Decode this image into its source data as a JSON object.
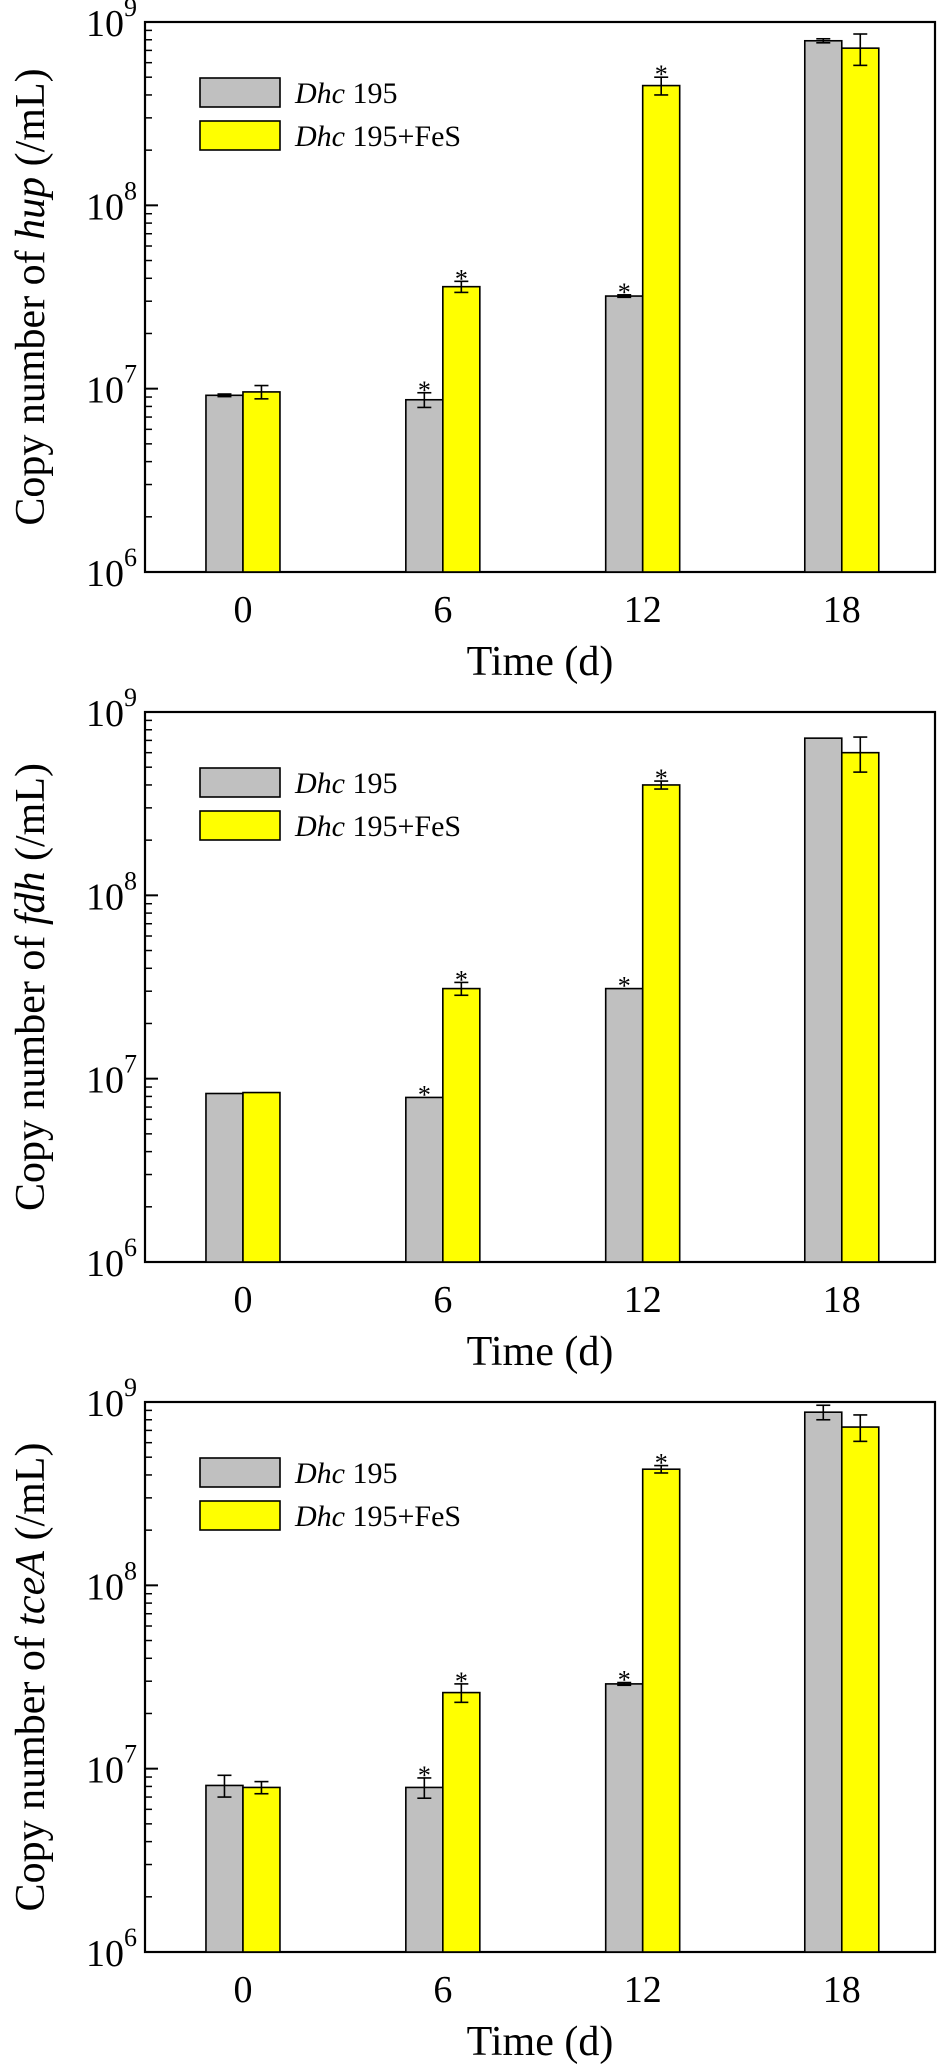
{
  "chart_data": [
    {
      "type": "bar",
      "scale": "log",
      "categories": [
        "0",
        "6",
        "12",
        "18"
      ],
      "series": [
        {
          "name": "Dhc 195",
          "color": "#c0c0c0",
          "values": [
            9200000,
            8700000,
            32000000,
            790000000
          ],
          "errors": [
            150000,
            800000,
            500000,
            20000000
          ],
          "significant": [
            false,
            true,
            true,
            false
          ]
        },
        {
          "name": "Dhc 195+FeS",
          "color": "#ffff00",
          "values": [
            9600000,
            36000000,
            450000000,
            720000000
          ],
          "errors": [
            800000,
            2500000,
            50000000,
            140000000
          ],
          "significant": [
            false,
            true,
            true,
            false
          ]
        }
      ],
      "ylabel_prefix": "Copy number of ",
      "ylabel_gene": "hup",
      "ylabel_suffix": " (/mL)",
      "xlabel": "Time (d)",
      "ylim": [
        1000000,
        1000000000
      ],
      "yticks": [
        {
          "base": "10",
          "exp": "6"
        },
        {
          "base": "10",
          "exp": "7"
        },
        {
          "base": "10",
          "exp": "8"
        },
        {
          "base": "10",
          "exp": "9"
        }
      ],
      "legend_position": "top-left",
      "legend": [
        {
          "italic": "Dhc",
          "rest": " 195"
        },
        {
          "italic": "Dhc",
          "rest": " 195+FeS"
        }
      ],
      "significance_marker": "*"
    },
    {
      "type": "bar",
      "scale": "log",
      "categories": [
        "0",
        "6",
        "12",
        "18"
      ],
      "series": [
        {
          "name": "Dhc 195",
          "color": "#c0c0c0",
          "values": [
            8300000,
            7900000,
            31000000,
            720000000
          ],
          "errors": [
            0,
            0,
            0,
            0
          ],
          "significant": [
            false,
            true,
            true,
            false
          ]
        },
        {
          "name": "Dhc 195+FeS",
          "color": "#ffff00",
          "values": [
            8400000,
            31000000,
            400000000,
            600000000
          ],
          "errors": [
            0,
            2500000,
            20000000,
            130000000
          ],
          "significant": [
            false,
            true,
            true,
            false
          ]
        }
      ],
      "ylabel_prefix": "Copy number of ",
      "ylabel_gene": "fdh",
      "ylabel_suffix": " (/mL)",
      "xlabel": "Time (d)",
      "ylim": [
        1000000,
        1000000000
      ],
      "yticks": [
        {
          "base": "10",
          "exp": "6"
        },
        {
          "base": "10",
          "exp": "7"
        },
        {
          "base": "10",
          "exp": "8"
        },
        {
          "base": "10",
          "exp": "9"
        }
      ],
      "legend_position": "top-left",
      "legend": [
        {
          "italic": "Dhc",
          "rest": " 195"
        },
        {
          "italic": "Dhc",
          "rest": " 195+FeS"
        }
      ],
      "significance_marker": "*"
    },
    {
      "type": "bar",
      "scale": "log",
      "categories": [
        "0",
        "6",
        "12",
        "18"
      ],
      "series": [
        {
          "name": "Dhc 195",
          "color": "#c0c0c0",
          "values": [
            8100000,
            7900000,
            29000000,
            880000000
          ],
          "errors": [
            1100000,
            1000000,
            500000,
            80000000
          ],
          "significant": [
            false,
            true,
            true,
            false
          ]
        },
        {
          "name": "Dhc 195+FeS",
          "color": "#ffff00",
          "values": [
            7900000,
            26000000,
            430000000,
            730000000
          ],
          "errors": [
            600000,
            3000000,
            20000000,
            120000000
          ],
          "significant": [
            false,
            true,
            true,
            false
          ]
        }
      ],
      "ylabel_prefix": "Copy number of ",
      "ylabel_gene": "tceA",
      "ylabel_suffix": " (/mL)",
      "xlabel": "Time (d)",
      "ylim": [
        1000000,
        1000000000
      ],
      "yticks": [
        {
          "base": "10",
          "exp": "6"
        },
        {
          "base": "10",
          "exp": "7"
        },
        {
          "base": "10",
          "exp": "8"
        },
        {
          "base": "10",
          "exp": "9"
        }
      ],
      "legend_position": "top-left",
      "legend": [
        {
          "italic": "Dhc",
          "rest": " 195"
        },
        {
          "italic": "Dhc",
          "rest": " 195+FeS"
        }
      ],
      "significance_marker": "*"
    }
  ]
}
